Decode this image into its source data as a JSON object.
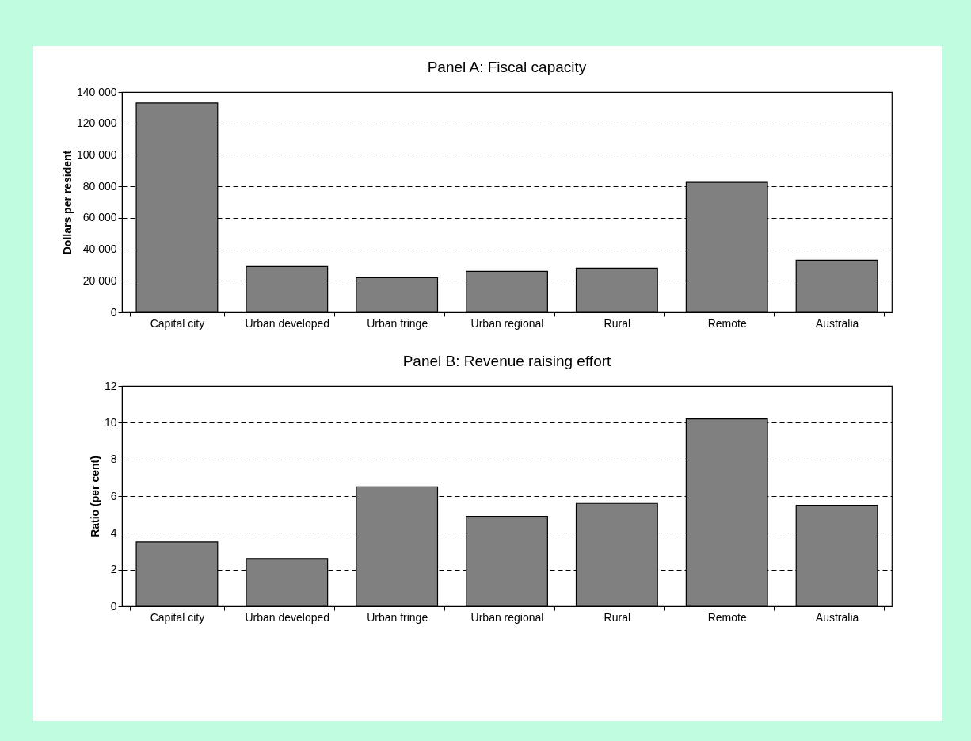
{
  "chart_data": [
    {
      "type": "bar",
      "title": "Panel A: Fiscal capacity",
      "ylabel": "Dollars per resident",
      "categories": [
        "Capital city",
        "Urban\ndeveloped",
        "Urban fringe",
        "Urban\nregional",
        "Rural",
        "Remote",
        "Australia"
      ],
      "values": [
        133000,
        29000,
        22000,
        26000,
        28000,
        82500,
        33000
      ],
      "color": "#808080",
      "ylim": [
        0,
        140000
      ],
      "yticks": [
        0,
        {
          "value": 20000,
          "label": "20 000"
        },
        {
          "value": 40000,
          "label": "40 000"
        },
        {
          "value": 60000,
          "label": "60 000"
        },
        {
          "value": 80000,
          "label": "80 000"
        },
        {
          "value": 100000,
          "label": "100 000"
        },
        {
          "value": 120000,
          "label": "120 000"
        },
        {
          "value": 140000,
          "label": "140 000"
        }
      ],
      "grid": "y",
      "line_style": "dashed"
    },
    {
      "type": "bar",
      "title": "Panel B: Revenue raising effort",
      "ylabel": "Ratio (per cent)",
      "categories": [
        "Capital city",
        "Urban\ndeveloped",
        "Urban fringe",
        "Urban\nregional",
        "Rural",
        "Remote",
        "Australia"
      ],
      "values": [
        3.5,
        2.6,
        6.5,
        4.9,
        5.6,
        10.2,
        5.5
      ],
      "color": "#808080",
      "ylim": [
        0,
        12
      ],
      "yticks": [
        0,
        2,
        4,
        6,
        8,
        10,
        12
      ],
      "grid": "y",
      "line_style": "dashed"
    }
  ]
}
